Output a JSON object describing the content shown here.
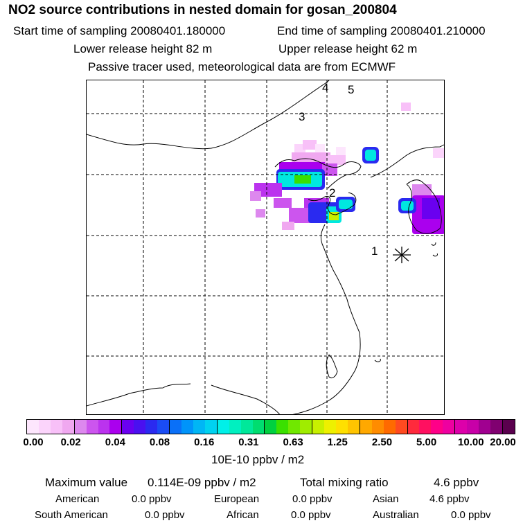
{
  "title": "NO2 source contributions in nested domain for gosan_200804",
  "start_sampling": "Start time of sampling 20080401.180000",
  "end_sampling": "End time of sampling 20080401.210000",
  "lower_release": "Lower release height   82 m",
  "upper_release": "Upper release height   62 m",
  "tracer_note": "Passive tracer used, meteorological data are from ECMWF",
  "map": {
    "labels": [
      "1",
      "2",
      "3",
      "4",
      "5"
    ],
    "receptor_icon": "asterisk-icon",
    "colors": {
      "border": "#000000",
      "grid": "#000000"
    }
  },
  "colorbar": {
    "ticks": [
      "0.00",
      "0.02",
      "0.04",
      "0.08",
      "0.16",
      "0.31",
      "0.63",
      "1.25",
      "2.50",
      "5.00",
      "10.00",
      "20.00"
    ],
    "colors": [
      "#fde6fd",
      "#fbd4fb",
      "#f8c0f8",
      "#f0a8f0",
      "#dd88ee",
      "#cc55ee",
      "#bb33ee",
      "#aa00ee",
      "#6a00f0",
      "#4a10f0",
      "#2a2af0",
      "#1a4cf5",
      "#0a70f8",
      "#0094fa",
      "#00b6f5",
      "#00d2f0",
      "#00f0e8",
      "#00f0c0",
      "#00e89a",
      "#00dd70",
      "#00d040",
      "#3ae000",
      "#70e800",
      "#a0ec00",
      "#c8f000",
      "#eef000",
      "#ffe000",
      "#ffc400",
      "#ffa800",
      "#ff8c00",
      "#ff6a00",
      "#ff4a20",
      "#ff2a3c",
      "#ff1060",
      "#ff0088",
      "#ee00a0",
      "#dd00aa",
      "#c800a8",
      "#a00090",
      "#800070",
      "#5a004e"
    ],
    "units": "10E-10 ppbv / m2"
  },
  "summary": {
    "max_label": "Maximum value",
    "max_value": "0.114E-09 ppbv / m2",
    "total_label": "Total mixing ratio",
    "total_value": "4.6 ppbv"
  },
  "regions": [
    {
      "name": "American",
      "value": "0.0 ppbv"
    },
    {
      "name": "European",
      "value": "0.0 ppbv"
    },
    {
      "name": "Asian",
      "value": "4.6 ppbv"
    },
    {
      "name": "South American",
      "value": "0.0 ppbv"
    },
    {
      "name": "African",
      "value": "0.0 ppbv"
    },
    {
      "name": "Australian",
      "value": "0.0 ppbv"
    }
  ]
}
